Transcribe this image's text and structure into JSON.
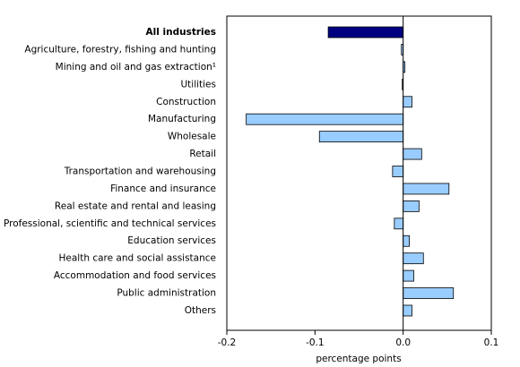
{
  "chart_data": {
    "type": "hbar",
    "categories": [
      "All industries",
      "Agriculture, forestry, fishing and hunting",
      "Mining and oil and gas extraction¹",
      "Utilities",
      "Construction",
      "Manufacturing",
      "Wholesale",
      "Retail",
      "Transportation and warehousing",
      "Finance and insurance",
      "Real estate and rental and leasing",
      "Professional, scientific and technical services",
      "Education services",
      "Health care and social assistance",
      "Accommodation and food services",
      "Public administration",
      "Others"
    ],
    "values": [
      -0.085,
      -0.002,
      0.002,
      -0.001,
      0.01,
      -0.178,
      -0.095,
      0.021,
      -0.012,
      0.052,
      0.018,
      -0.01,
      0.007,
      0.023,
      0.012,
      0.057,
      0.01
    ],
    "colors": [
      "#000080",
      "#99ccff",
      "#99ccff",
      "#99ccff",
      "#99ccff",
      "#99ccff",
      "#99ccff",
      "#99ccff",
      "#99ccff",
      "#99ccff",
      "#99ccff",
      "#99ccff",
      "#99ccff",
      "#99ccff",
      "#99ccff",
      "#99ccff",
      "#99ccff"
    ],
    "bold_category": "All industries",
    "xlabel": "percentage points",
    "xlim": [
      -0.2,
      0.1
    ],
    "xticks": [
      -0.2,
      -0.1,
      {
        "value": 0,
        "label": "0.0"
      },
      0.1
    ]
  }
}
